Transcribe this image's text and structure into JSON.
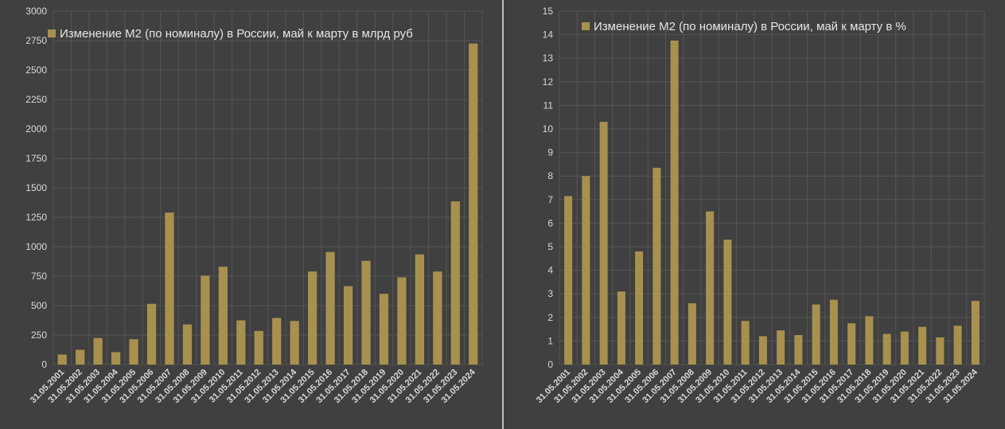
{
  "chart_data": [
    {
      "type": "bar",
      "series": [
        {
          "name": "Изменение М2 (по номиналу) в России, май к марту в млрд руб",
          "values": [
            85,
            125,
            225,
            105,
            215,
            515,
            1290,
            340,
            755,
            830,
            375,
            285,
            395,
            370,
            790,
            955,
            665,
            880,
            600,
            740,
            935,
            790,
            1385,
            2725
          ]
        }
      ],
      "categories": [
        "31.05.2001",
        "31.05.2002",
        "31.05.2003",
        "31.05.2004",
        "31.05.2005",
        "31.05.2006",
        "31.05.2007",
        "31.05.2008",
        "31.05.2009",
        "31.05.2010",
        "31.05.2011",
        "31.05.2012",
        "31.05.2013",
        "31.05.2014",
        "31.05.2015",
        "31.05.2016",
        "31.05.2017",
        "31.05.2018",
        "31.05.2019",
        "31.05.2020",
        "31.05.2021",
        "31.05.2022",
        "31.05.2023",
        "31.05.2024"
      ],
      "y_ticks": [
        "0",
        "250",
        "500",
        "750",
        "1000",
        "1250",
        "1500",
        "1750",
        "2000",
        "2250",
        "2500",
        "2750",
        "3000"
      ],
      "ylim": [
        0,
        3000
      ],
      "grid": true,
      "legend_position": "top-left",
      "bar_color": "#a8914f"
    },
    {
      "type": "bar",
      "series": [
        {
          "name": "Изменение М2 (по номиналу) в России, май к марту в %",
          "values": [
            7.15,
            8.0,
            10.3,
            3.1,
            4.8,
            8.35,
            13.75,
            2.6,
            6.5,
            5.3,
            1.85,
            1.2,
            1.45,
            1.25,
            2.55,
            2.75,
            1.75,
            2.05,
            1.3,
            1.4,
            1.6,
            1.15,
            1.65,
            2.7
          ]
        }
      ],
      "categories": [
        "31.05.2001",
        "31.05.2002",
        "31.05.2003",
        "31.05.2004",
        "31.05.2005",
        "31.05.2006",
        "31.05.2007",
        "31.05.2008",
        "31.05.2009",
        "31.05.2010",
        "31.05.2011",
        "31.05.2012",
        "31.05.2013",
        "31.05.2014",
        "31.05.2015",
        "31.05.2016",
        "31.05.2017",
        "31.05.2018",
        "31.05.2019",
        "31.05.2020",
        "31.05.2021",
        "31.05.2022",
        "31.05.2023",
        "31.05.2024"
      ],
      "y_ticks": [
        "0",
        "1",
        "2",
        "3",
        "4",
        "5",
        "6",
        "7",
        "8",
        "9",
        "10",
        "11",
        "12",
        "13",
        "14",
        "15"
      ],
      "ylim": [
        0,
        15
      ],
      "grid": true,
      "legend_position": "top-left",
      "bar_color": "#a8914f"
    }
  ]
}
